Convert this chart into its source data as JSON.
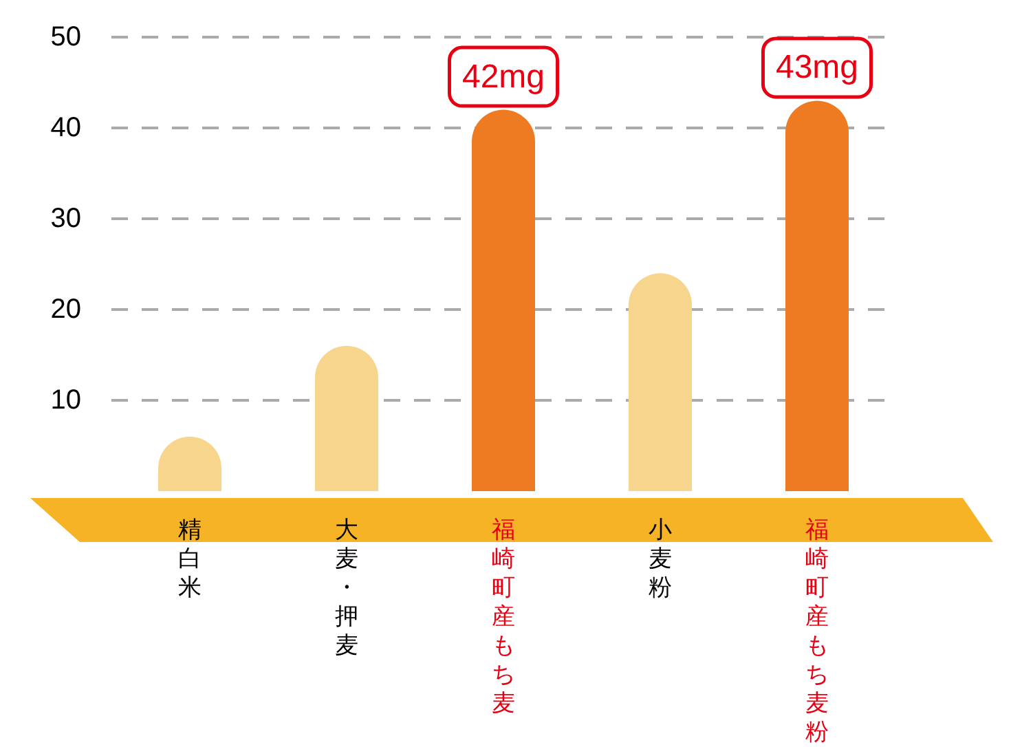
{
  "chart_data": {
    "type": "bar",
    "categories": [
      "精白米",
      "大麦・押麦",
      "福崎町産もち麦",
      "小麦粉",
      "福崎町産もち麦粉"
    ],
    "values": [
      6,
      16,
      42,
      24,
      43
    ],
    "colors": [
      "#f8d58c",
      "#f8d58c",
      "#ee7a22",
      "#f8d58c",
      "#ee7a22"
    ],
    "value_labels": [
      null,
      null,
      "42mg",
      null,
      "43mg"
    ],
    "ylim": [
      0,
      50
    ],
    "yticks": [
      10,
      20,
      30,
      40,
      50
    ],
    "grid": "y"
  }
}
